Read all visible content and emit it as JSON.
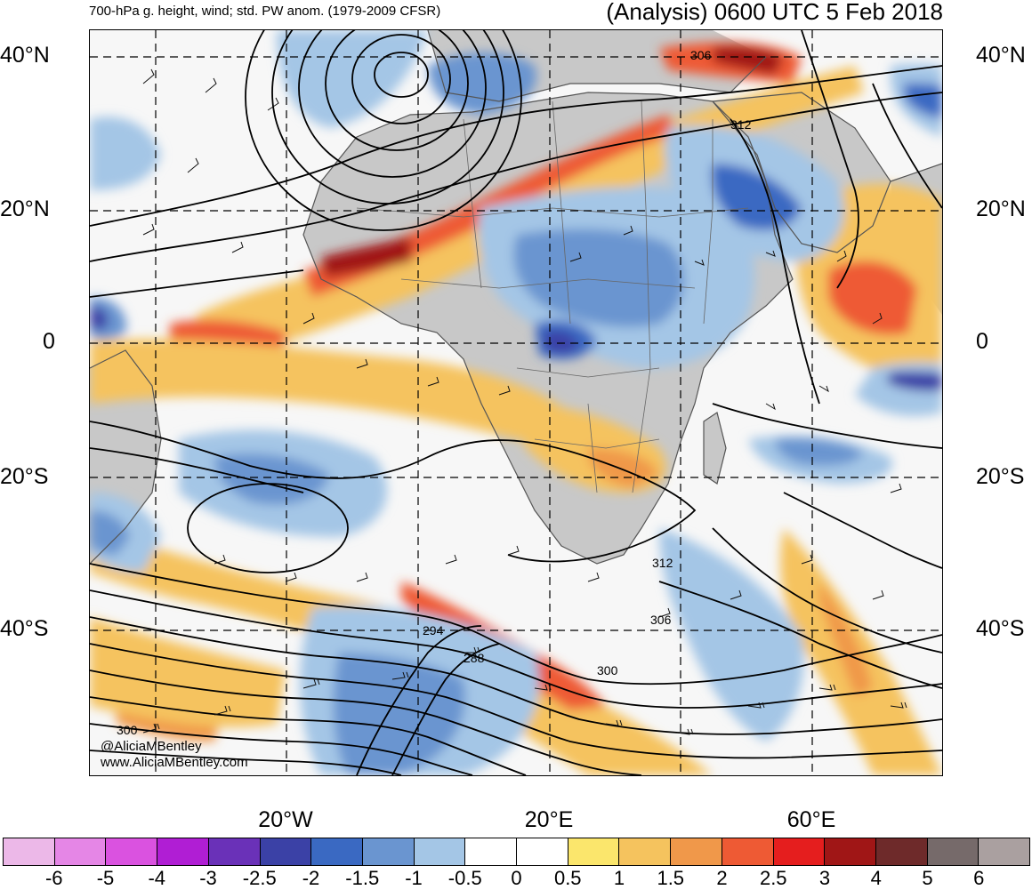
{
  "title": {
    "left": "700-hPa g. height, wind; std. PW anom. (1979-2009 CFSR)",
    "right": "(Analysis) 0600 UTC 5 Feb 2018"
  },
  "axes": {
    "lat_labels": [
      {
        "text": "40°N",
        "lat": 40
      },
      {
        "text": "20°N",
        "lat": 20
      },
      {
        "text": "0",
        "lat": 0
      },
      {
        "text": "20°S",
        "lat": -20
      },
      {
        "text": "40°S",
        "lat": -40
      }
    ],
    "lon_labels": [
      {
        "text": "20°W",
        "lon": -20
      },
      {
        "text": "20°E",
        "lon": 20
      },
      {
        "text": "60°E",
        "lon": 60
      }
    ]
  },
  "credits": {
    "handle": "@AliciaMBentley",
    "site": "www.AliciaMBentley.com"
  },
  "contour_labels": [
    {
      "text": "306",
      "lon": 48,
      "lat": 40
    },
    {
      "text": "312",
      "lon": 50,
      "lat": 33
    },
    {
      "text": "312",
      "lon": 36,
      "lat": -33
    },
    {
      "text": "306",
      "lon": 35,
      "lat": -39
    },
    {
      "text": "300",
      "lon": 30,
      "lat": -45
    },
    {
      "text": "294",
      "lon": 10,
      "lat": -42
    },
    {
      "text": "288",
      "lon": 14,
      "lat": -44
    },
    {
      "text": "300",
      "lon": -38,
      "lat": -54
    }
  ],
  "colorbar": {
    "segments": [
      {
        "color": "#ecb8e8"
      },
      {
        "color": "#e586e6"
      },
      {
        "color": "#da52e0"
      },
      {
        "color": "#b01ed4"
      },
      {
        "color": "#6a31b8"
      },
      {
        "color": "#3b41a6"
      },
      {
        "color": "#3a69c2"
      },
      {
        "color": "#6a95d0"
      },
      {
        "color": "#a4c6e6"
      },
      {
        "color": "#ffffff"
      },
      {
        "color": "#ffffff"
      },
      {
        "color": "#fbe66c"
      },
      {
        "color": "#f5c35e"
      },
      {
        "color": "#f0984a"
      },
      {
        "color": "#ee5a34"
      },
      {
        "color": "#e51e1e"
      },
      {
        "color": "#a01616"
      },
      {
        "color": "#6e2a2a"
      },
      {
        "color": "#766a6a"
      },
      {
        "color": "#aaa0a0"
      }
    ],
    "labels": [
      "-6",
      "-5",
      "-4",
      "-3",
      "-2.5",
      "-2",
      "-1.5",
      "-1",
      "-0.5",
      "0",
      "0.5",
      "1",
      "1.5",
      "2",
      "2.5",
      "3",
      "4",
      "5",
      "6"
    ]
  },
  "map_extent": {
    "lon_min": -50,
    "lon_max": 80,
    "lat_min": -55,
    "lat_max": 43
  }
}
